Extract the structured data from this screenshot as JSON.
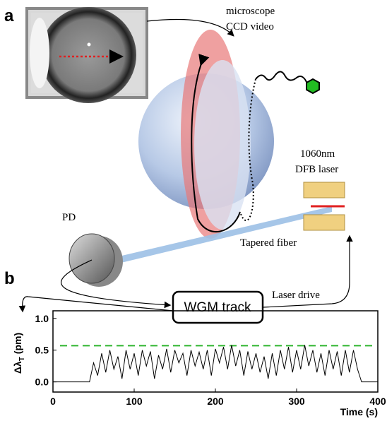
{
  "panels": {
    "a": "a",
    "b": "b"
  },
  "labels": {
    "microscope": "microscope",
    "ccd": "CCD video",
    "wavelength": "1060nm",
    "laser": "DFB laser",
    "pd": "PD",
    "fiber": "Tapered fiber",
    "track": "WGM track",
    "drive": "Laser drive"
  },
  "chart_data": {
    "type": "line",
    "xlabel": "Time (s)",
    "ylabel": {
      "symbol": "Δλ",
      "subscript": "T",
      "unit": "(pm)"
    },
    "xlim": [
      0,
      400
    ],
    "ylim": [
      -0.16,
      1.12
    ],
    "xticks": [
      0,
      100,
      200,
      300,
      400
    ],
    "yticks": [
      {
        "value": 0,
        "label": "0.0"
      },
      {
        "value": 0.5,
        "label": "0.5"
      },
      {
        "value": 1,
        "label": "1.0"
      }
    ],
    "threshold": {
      "value": 0.57,
      "color": "#2db52d"
    },
    "x": [
      0,
      5,
      10,
      15,
      20,
      25,
      30,
      35,
      40,
      45,
      50,
      55,
      60,
      65,
      70,
      75,
      80,
      85,
      90,
      95,
      100,
      105,
      110,
      115,
      120,
      125,
      130,
      135,
      140,
      145,
      150,
      155,
      160,
      165,
      170,
      175,
      180,
      185,
      190,
      195,
      200,
      205,
      210,
      215,
      220,
      225,
      230,
      235,
      240,
      245,
      250,
      255,
      260,
      265,
      270,
      275,
      280,
      285,
      290,
      295,
      300,
      305,
      310,
      315,
      320,
      325,
      330,
      335,
      340,
      345,
      350,
      355,
      360,
      365,
      370,
      375,
      380,
      385,
      390,
      395,
      400
    ],
    "series": [
      {
        "color": "#000000",
        "values": [
          0,
          0,
          0,
          0,
          0,
          0,
          0,
          0,
          0,
          0,
          0.3,
          0.1,
          0.45,
          0.15,
          0.5,
          0.2,
          0.4,
          0.05,
          0.5,
          0.2,
          0.45,
          0.1,
          0.5,
          0.25,
          0.48,
          0.05,
          0.42,
          0.2,
          0.52,
          0.15,
          0.5,
          0.3,
          0.45,
          0.1,
          0.5,
          0.25,
          0.47,
          0.2,
          0.5,
          0.1,
          0.52,
          0.3,
          0.55,
          0.2,
          0.58,
          0.25,
          0.5,
          0.1,
          0.48,
          0.2,
          0.45,
          0.15,
          0.4,
          0.05,
          0.45,
          0.1,
          0.5,
          0.2,
          0.55,
          0.15,
          0.5,
          0.2,
          0.58,
          0.25,
          0.5,
          0.15,
          0.45,
          0.1,
          0.5,
          0.2,
          0.48,
          0.1,
          0.5,
          0.15,
          0.5,
          0.2,
          0,
          0,
          0,
          0,
          0
        ]
      }
    ]
  }
}
